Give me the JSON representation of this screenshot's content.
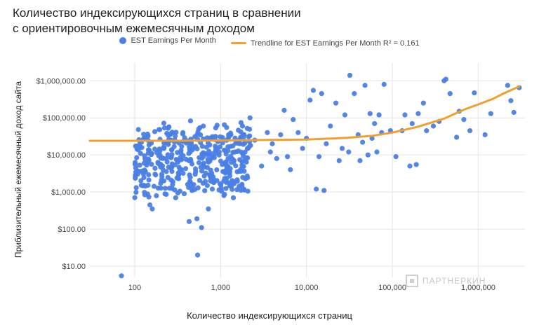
{
  "chart_data": {
    "type": "scatter",
    "title_lines": [
      "Количество индексирующихся страниц в сравнении",
      "с ориентировочным ежемесячным доходом"
    ],
    "xlabel": "Количество индексирующихся страниц",
    "ylabel": "Приблизительный ежемесячный доход сайта",
    "x_scale": "log",
    "y_scale": "log",
    "xlim": [
      30,
      3500000
    ],
    "ylim": [
      5,
      3000000
    ],
    "grid": true,
    "legend_position": "top",
    "x_ticks": [
      {
        "value": 100,
        "label": "100"
      },
      {
        "value": 1000,
        "label": "1,000"
      },
      {
        "value": 10000,
        "label": "10,000"
      },
      {
        "value": 100000,
        "label": "100,000"
      },
      {
        "value": 1000000,
        "label": "1,000,000"
      }
    ],
    "y_ticks": [
      {
        "value": 10,
        "label": "$10.00"
      },
      {
        "value": 100,
        "label": "$100.00"
      },
      {
        "value": 1000,
        "label": "$1,000.00"
      },
      {
        "value": 10000,
        "label": "$10,000.00"
      },
      {
        "value": 100000,
        "label": "$100,000.00"
      },
      {
        "value": 1000000,
        "label": "$1,000,000.00"
      }
    ],
    "series": [
      {
        "name": "EST Earnings Per Month",
        "kind": "scatter",
        "color": "#4a7fe5",
        "points": [
          [
            70,
            5.5
          ],
          [
            540,
            20
          ],
          [
            600,
            110
          ],
          [
            530,
            190
          ],
          [
            430,
            160
          ],
          [
            720,
            350
          ],
          [
            150,
            450
          ],
          [
            160,
            350
          ],
          [
            300,
            700
          ],
          [
            450,
            1500
          ],
          [
            700,
            1500
          ],
          [
            800,
            1200
          ],
          [
            1900,
            7000
          ],
          [
            3000,
            5000
          ],
          [
            13000,
            1200
          ],
          [
            16000,
            1100
          ],
          [
            32000,
            1400000
          ],
          [
            48000,
            750000
          ],
          [
            80000,
            800000
          ],
          [
            110000,
            9000
          ],
          [
            160000,
            5000
          ],
          [
            190000,
            5500
          ],
          [
            230000,
            250000
          ],
          [
            400000,
            1000000
          ],
          [
            420000,
            1100000
          ],
          [
            470000,
            450000
          ],
          [
            560000,
            30000
          ],
          [
            600000,
            150000
          ],
          [
            680000,
            90000
          ],
          [
            800000,
            45000
          ],
          [
            900000,
            470000
          ],
          [
            1200000,
            35000
          ],
          [
            1400000,
            130000
          ],
          [
            2200000,
            750000
          ],
          [
            2400000,
            290000
          ],
          [
            2600000,
            140000
          ],
          [
            3000000,
            650000
          ],
          [
            10000,
            28000
          ],
          [
            11000,
            300000
          ],
          [
            12000,
            550000
          ],
          [
            15000,
            450000
          ],
          [
            22000,
            250000
          ],
          [
            28000,
            120000
          ],
          [
            36000,
            450000
          ],
          [
            45000,
            22000
          ],
          [
            55000,
            130000
          ],
          [
            62000,
            70000
          ],
          [
            70000,
            120000
          ],
          [
            75000,
            40000
          ],
          [
            95000,
            45000
          ],
          [
            130000,
            45000
          ],
          [
            140000,
            120000
          ],
          [
            170000,
            70000
          ],
          [
            200000,
            130000
          ],
          [
            250000,
            45000
          ],
          [
            300000,
            60000
          ],
          [
            350000,
            80000
          ],
          [
            6000,
            9000
          ],
          [
            7000,
            90000
          ],
          [
            8000,
            40000
          ],
          [
            9000,
            15000
          ],
          [
            14000,
            9000
          ],
          [
            17000,
            20000
          ],
          [
            19000,
            60000
          ],
          [
            24000,
            7000
          ],
          [
            26000,
            15000
          ],
          [
            31000,
            12000
          ],
          [
            40000,
            35000
          ],
          [
            42000,
            7000
          ],
          [
            52000,
            10000
          ],
          [
            58000,
            28000
          ],
          [
            66000,
            12000
          ],
          [
            4000,
            20000
          ],
          [
            4500,
            8000
          ],
          [
            5000,
            35000
          ],
          [
            5500,
            160000
          ],
          [
            6500,
            4000
          ],
          [
            2500,
            25000
          ],
          [
            3500,
            40000
          ],
          [
            3800,
            12000
          ],
          [
            2200,
            100000
          ],
          [
            1800,
            60000
          ]
        ]
      },
      {
        "name": "Trendline for EST Earnings Per Month R² = 0.161",
        "kind": "trendline",
        "color": "#f0a030",
        "points": [
          [
            30,
            24000
          ],
          [
            100,
            24000
          ],
          [
            300,
            24200
          ],
          [
            1000,
            24500
          ],
          [
            3000,
            25200
          ],
          [
            10000,
            26000
          ],
          [
            30000,
            29000
          ],
          [
            60000,
            33000
          ],
          [
            100000,
            40000
          ],
          [
            200000,
            58000
          ],
          [
            400000,
            95000
          ],
          [
            700000,
            170000
          ],
          [
            1000000,
            230000
          ],
          [
            1500000,
            330000
          ],
          [
            2000000,
            460000
          ],
          [
            3000000,
            700000
          ]
        ]
      }
    ]
  },
  "watermark": {
    "text": "ПАРТНЕРКИН"
  }
}
